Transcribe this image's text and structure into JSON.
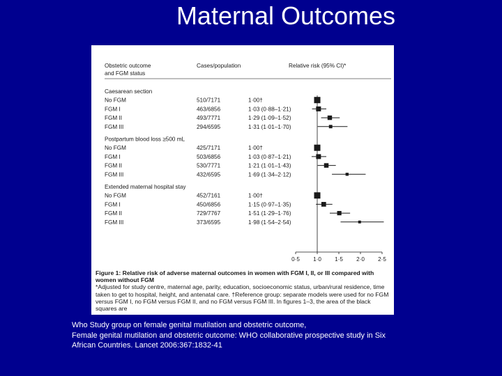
{
  "slide": {
    "title": "Maternal Outcomes",
    "citation": [
      "Who Study group on female genital mutilation and obstetric outcome,",
      "Female genital mutilation and obstetric outcome: WHO collaborative prospective study in Six",
      "African Countries. Lancet 2006:367:1832-41"
    ]
  },
  "chart_data": {
    "type": "forest",
    "columns": {
      "outcome": [
        "Obstetric outcome",
        "and FGM status"
      ],
      "cases": "Cases/population",
      "rr": "Relative risk (95% CI)*"
    },
    "x_ticks": [
      "0·5",
      "1·0",
      "1·5",
      "2·0",
      "2·5"
    ],
    "xlim": [
      0.5,
      2.5
    ],
    "reference_line": 1.0,
    "groups": [
      {
        "name": "Caesarean section",
        "rows": [
          {
            "label": "No FGM",
            "cases": "510/7171",
            "rr_text": "1·00†",
            "rr": 1.0,
            "lo": null,
            "hi": null
          },
          {
            "label": "FGM I",
            "cases": "463/6856",
            "rr_text": "1·03 (0·88–1·21)",
            "rr": 1.03,
            "lo": 0.88,
            "hi": 1.21
          },
          {
            "label": "FGM II",
            "cases": "493/7771",
            "rr_text": "1·29 (1·09–1·52)",
            "rr": 1.29,
            "lo": 1.09,
            "hi": 1.52
          },
          {
            "label": "FGM III",
            "cases": "294/6595",
            "rr_text": "1·31 (1·01–1·70)",
            "rr": 1.31,
            "lo": 1.01,
            "hi": 1.7
          }
        ]
      },
      {
        "name": "Postpartum blood loss ≥500 mL",
        "rows": [
          {
            "label": "No FGM",
            "cases": "425/7171",
            "rr_text": "1·00†",
            "rr": 1.0,
            "lo": null,
            "hi": null
          },
          {
            "label": "FGM I",
            "cases": "503/6856",
            "rr_text": "1·03 (0·87–1·21)",
            "rr": 1.03,
            "lo": 0.87,
            "hi": 1.21
          },
          {
            "label": "FGM II",
            "cases": "530/7771",
            "rr_text": "1·21 (1·01–1·43)",
            "rr": 1.21,
            "lo": 1.01,
            "hi": 1.43
          },
          {
            "label": "FGM III",
            "cases": "432/6595",
            "rr_text": "1·69 (1·34–2·12)",
            "rr": 1.69,
            "lo": 1.34,
            "hi": 2.12
          }
        ]
      },
      {
        "name": "Extended maternal hospital stay",
        "rows": [
          {
            "label": "No FGM",
            "cases": "452/7161",
            "rr_text": "1·00†",
            "rr": 1.0,
            "lo": null,
            "hi": null
          },
          {
            "label": "FGM I",
            "cases": "450/6856",
            "rr_text": "1·15 (0·97–1·35)",
            "rr": 1.15,
            "lo": 0.97,
            "hi": 1.35
          },
          {
            "label": "FGM II",
            "cases": "729/7767",
            "rr_text": "1·51 (1·29–1·76)",
            "rr": 1.51,
            "lo": 1.29,
            "hi": 1.76
          },
          {
            "label": "FGM III",
            "cases": "373/6595",
            "rr_text": "1·98 (1·54–2·54)",
            "rr": 1.98,
            "lo": 1.54,
            "hi": 2.54
          }
        ]
      }
    ],
    "caption": {
      "title": "Figure 1: Relative risk of adverse maternal outcomes in women with FGM I, II, or III compared with women without FGM",
      "note": "*Adjusted for study centre, maternal age, parity, education, socioeconomic status, urban/rural residence, time taken to get to hospital, height, and antenatal care. †Reference group: separate models were used for no FGM versus FGM I, no FGM versus FGM II, and no FGM versus FGM III. In figures 1–3, the area of the black squares are"
    }
  }
}
